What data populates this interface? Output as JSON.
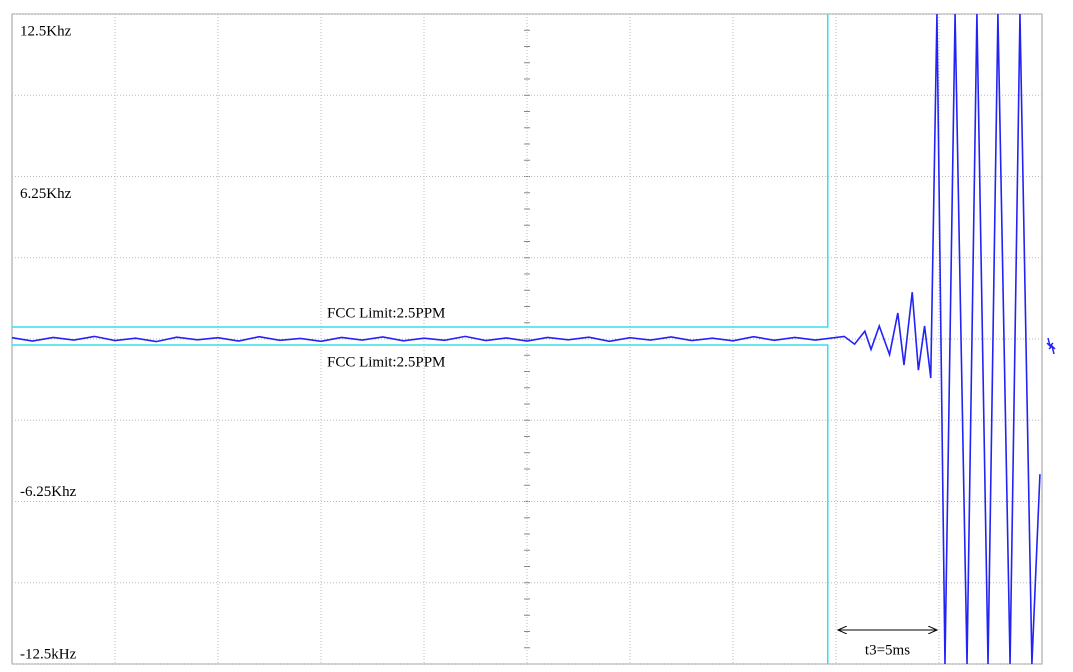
{
  "chart_data": {
    "type": "line",
    "xlim": [
      0,
      50
    ],
    "ylim": [
      -12.5,
      12.5
    ],
    "yticks": [
      {
        "value": 12.5,
        "label": "12.5Khz"
      },
      {
        "value": 6.25,
        "label": "6.25Khz"
      },
      {
        "value": -6.25,
        "label": "-6.25Khz"
      },
      {
        "value": -12.5,
        "label": "-12.5kHz"
      }
    ],
    "grid": true,
    "series": [
      {
        "color": "#2323f5",
        "x": [
          0,
          1,
          2,
          3,
          4,
          5,
          6,
          7,
          8,
          9,
          10,
          11,
          12,
          13,
          14,
          15,
          16,
          17,
          18,
          19,
          20,
          21,
          22,
          23,
          24,
          25,
          26,
          27,
          28,
          29,
          30,
          31,
          32,
          33,
          34,
          35,
          36,
          37,
          38,
          39,
          40.4,
          40.9,
          41.4,
          41.7,
          42.1,
          42.6,
          43.0,
          43.3,
          43.7,
          44.0,
          44.3,
          44.6,
          44.9,
          45.29,
          45.78,
          46.36,
          46.84,
          47.38,
          47.86,
          48.45,
          48.93,
          49.51,
          49.9
        ],
        "values": [
          0.05,
          -0.08,
          0.06,
          -0.04,
          0.1,
          -0.06,
          0.03,
          -0.1,
          0.07,
          -0.03,
          0.05,
          -0.08,
          0.09,
          -0.05,
          0.02,
          -0.09,
          0.06,
          -0.04,
          0.08,
          -0.07,
          0.03,
          -0.05,
          0.1,
          -0.06,
          0.04,
          -0.08,
          0.06,
          -0.03,
          0.07,
          -0.09,
          0.05,
          -0.04,
          0.08,
          -0.06,
          0.03,
          -0.07,
          0.09,
          -0.05,
          0.06,
          -0.04,
          0.1,
          -0.2,
          0.3,
          -0.4,
          0.5,
          -0.6,
          1.0,
          -1.0,
          1.8,
          -1.2,
          0.5,
          -1.5,
          12.5,
          -12.5,
          12.5,
          -12.5,
          12.5,
          -12.5,
          12.5,
          -12.5,
          12.5,
          -12.5,
          -5.2
        ]
      },
      {
        "name": "FCC Limit:2.5PPM",
        "color": "#33e0e8",
        "x": [
          0,
          39.6,
          39.6
        ],
        "values": [
          0.46,
          0.46,
          12.5
        ]
      },
      {
        "name": "FCC Limit:2.5PPM",
        "color": "#33e0e8",
        "x": [
          0,
          39.6,
          39.6
        ],
        "values": [
          -0.23,
          -0.23,
          -12.5
        ]
      }
    ],
    "annotations": [
      {
        "text": "t3=5ms",
        "x": [
          40,
          45
        ]
      }
    ]
  }
}
